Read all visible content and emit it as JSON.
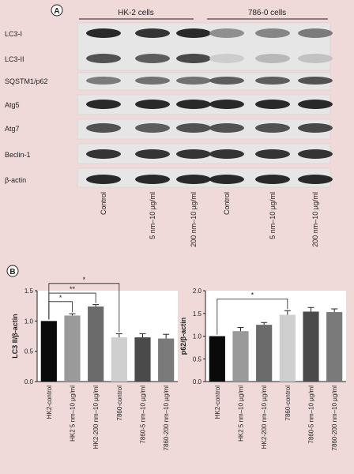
{
  "panel_a": {
    "label": "A",
    "groups": [
      "HK-2 cells",
      "786-0 cells"
    ],
    "lanes": [
      "Control",
      "5 nm–10 µg/ml",
      "200 nm–10 µg/ml",
      "Control",
      "5 nm–10 µg/ml",
      "200 nm–10 µg/ml"
    ],
    "blots": [
      {
        "name": "LC3-I",
        "intensity": [
          0.95,
          0.9,
          0.95,
          0.45,
          0.5,
          0.55
        ]
      },
      {
        "name": "LC3-II",
        "intensity": [
          0.75,
          0.7,
          0.8,
          0.15,
          0.25,
          0.2
        ]
      },
      {
        "name": "SQSTM1/p62",
        "intensity": [
          0.55,
          0.6,
          0.6,
          0.7,
          0.7,
          0.75
        ]
      },
      {
        "name": "Atg5",
        "intensity": [
          0.95,
          0.95,
          0.95,
          0.95,
          0.95,
          0.95
        ]
      },
      {
        "name": "Atg7",
        "intensity": [
          0.75,
          0.7,
          0.75,
          0.75,
          0.75,
          0.8
        ]
      },
      {
        "name": "Beclin-1",
        "intensity": [
          0.9,
          0.9,
          0.9,
          0.9,
          0.9,
          0.9
        ]
      },
      {
        "name": "β-actin",
        "intensity": [
          0.95,
          0.95,
          0.95,
          0.95,
          0.95,
          0.95
        ]
      }
    ]
  },
  "panel_b": {
    "label": "B"
  },
  "chart_data": [
    {
      "type": "bar",
      "ylabel": "LC3 II/β-actin",
      "ylim": [
        0,
        1.5
      ],
      "yticks": [
        "0.0",
        "0.5",
        "1.0",
        "1.5"
      ],
      "categories": [
        "HK2-control",
        "HK2 5 nm–10 µg/ml",
        "HK2-200 nm–10 µg/ml",
        "7860-control",
        "7860-5 nm–10 µg/ml",
        "7860-200 nm–10 µg/ml"
      ],
      "values": [
        1.0,
        1.09,
        1.24,
        0.73,
        0.73,
        0.71
      ],
      "errors": [
        0.0,
        0.03,
        0.03,
        0.06,
        0.06,
        0.07
      ],
      "colors": [
        "#0a0a0a",
        "#9a9a9a",
        "#6b6b6b",
        "#cfcfcf",
        "#4a4a4a",
        "#7a7a7a"
      ],
      "significance": [
        "*",
        "**",
        "*"
      ]
    },
    {
      "type": "bar",
      "ylabel": "p62/β-actin",
      "ylim": [
        0,
        2.0
      ],
      "yticks": [
        "0.0",
        "0.5",
        "1.0",
        "1.5",
        "2.0"
      ],
      "categories": [
        "HK2-control",
        "HK2 5 nm–10 µg/ml",
        "HK2-200 nm–10 µg/ml",
        "7860-control",
        "7860-5 nm–10 µg/ml",
        "7860-200 nm–10 µg/ml"
      ],
      "values": [
        1.0,
        1.11,
        1.25,
        1.47,
        1.54,
        1.53
      ],
      "errors": [
        0.0,
        0.08,
        0.05,
        0.09,
        0.09,
        0.07
      ],
      "colors": [
        "#0a0a0a",
        "#9a9a9a",
        "#6b6b6b",
        "#cfcfcf",
        "#4a4a4a",
        "#7a7a7a"
      ],
      "significance": [
        "*"
      ]
    }
  ]
}
